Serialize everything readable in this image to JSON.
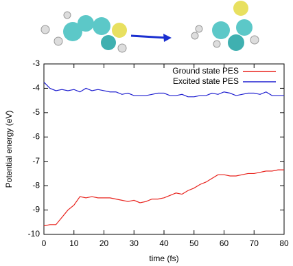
{
  "chart_data": {
    "type": "line",
    "xlabel": "time (fs)",
    "ylabel": "Potential energy (eV)",
    "x": [
      0,
      2,
      4,
      6,
      8,
      10,
      12,
      14,
      16,
      18,
      20,
      22,
      24,
      26,
      28,
      30,
      32,
      34,
      36,
      38,
      40,
      42,
      44,
      46,
      48,
      50,
      52,
      54,
      56,
      58,
      60,
      62,
      64,
      66,
      68,
      70,
      72,
      74,
      76,
      78,
      80
    ],
    "series": [
      {
        "name": "Ground state PES",
        "color": "#e8221c",
        "values": [
          -9.65,
          -9.6,
          -9.6,
          -9.3,
          -9.0,
          -8.8,
          -8.45,
          -8.5,
          -8.45,
          -8.5,
          -8.5,
          -8.5,
          -8.55,
          -8.6,
          -8.65,
          -8.6,
          -8.7,
          -8.65,
          -8.55,
          -8.55,
          -8.5,
          -8.4,
          -8.3,
          -8.35,
          -8.2,
          -8.1,
          -7.95,
          -7.85,
          -7.7,
          -7.55,
          -7.55,
          -7.6,
          -7.6,
          -7.55,
          -7.5,
          -7.5,
          -7.45,
          -7.4,
          -7.4,
          -7.35,
          -7.35
        ]
      },
      {
        "name": "Excited state PES",
        "color": "#1f1fd0",
        "values": [
          -3.75,
          -4.0,
          -4.1,
          -4.05,
          -4.1,
          -4.05,
          -4.15,
          -4.0,
          -4.1,
          -4.05,
          -4.1,
          -4.15,
          -4.15,
          -4.25,
          -4.2,
          -4.3,
          -4.3,
          -4.3,
          -4.25,
          -4.2,
          -4.2,
          -4.3,
          -4.3,
          -4.25,
          -4.35,
          -4.35,
          -4.3,
          -4.3,
          -4.2,
          -4.25,
          -4.15,
          -4.2,
          -4.3,
          -4.25,
          -4.2,
          -4.2,
          -4.25,
          -4.15,
          -4.3,
          -4.3,
          -4.3
        ]
      }
    ],
    "xlim": [
      0,
      80
    ],
    "xticks": [
      0,
      10,
      20,
      30,
      40,
      50,
      60,
      70,
      80
    ],
    "ylim": [
      -10,
      -3
    ],
    "yticks": [
      -10,
      -9,
      -8,
      -7,
      -6,
      -5,
      -4,
      -3
    ],
    "legend": "top-right"
  }
}
